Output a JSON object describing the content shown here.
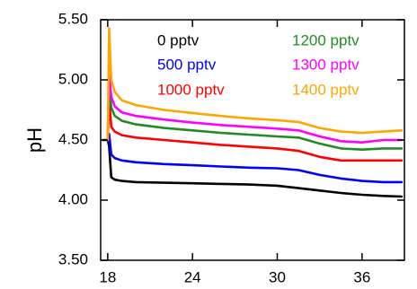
{
  "chart_data": {
    "type": "line",
    "title": "",
    "xlabel": "",
    "ylabel": "pH",
    "xlim": [
      17.5,
      39
    ],
    "ylim": [
      3.5,
      5.5
    ],
    "x_ticks": [
      18,
      24,
      30,
      36
    ],
    "y_ticks": [
      3.5,
      4.0,
      4.5,
      5.0,
      5.5
    ],
    "x_tick_labels": [
      "18",
      "24",
      "30",
      "36"
    ],
    "y_tick_labels": [
      "3.50",
      "4.00",
      "4.50",
      "5.00",
      "5.50"
    ],
    "grid": false,
    "legend_position": "top",
    "pre_x": [
      17.6,
      18.0
    ],
    "pre_value": 4.5,
    "x": [
      18.1,
      18.25,
      18.5,
      19,
      20,
      22,
      24,
      26,
      28,
      30,
      31.5,
      33,
      34.5,
      36,
      37.5,
      38.8
    ],
    "series": [
      {
        "name": "0 pptv",
        "color": "#000000",
        "values": [
          4.45,
          4.19,
          4.17,
          4.16,
          4.15,
          4.145,
          4.14,
          4.135,
          4.13,
          4.12,
          4.1,
          4.08,
          4.06,
          4.045,
          4.035,
          4.03
        ]
      },
      {
        "name": "500 pptv",
        "color": "#0000ff",
        "values": [
          4.55,
          4.38,
          4.35,
          4.33,
          4.315,
          4.3,
          4.29,
          4.28,
          4.27,
          4.265,
          4.25,
          4.21,
          4.18,
          4.16,
          4.15,
          4.15
        ]
      },
      {
        "name": "1000 pptv",
        "color": "#ff0000",
        "values": [
          4.85,
          4.61,
          4.57,
          4.54,
          4.52,
          4.5,
          4.48,
          4.46,
          4.445,
          4.43,
          4.41,
          4.36,
          4.33,
          4.33,
          4.33,
          4.33
        ]
      },
      {
        "name": "1200 pptv",
        "color": "#228b22",
        "values": [
          4.95,
          4.77,
          4.7,
          4.66,
          4.63,
          4.6,
          4.58,
          4.56,
          4.545,
          4.53,
          4.52,
          4.47,
          4.43,
          4.42,
          4.43,
          4.43
        ]
      },
      {
        "name": "1300 pptv",
        "color": "#ff00ff",
        "values": [
          5.05,
          4.86,
          4.78,
          4.73,
          4.7,
          4.67,
          4.645,
          4.625,
          4.61,
          4.595,
          4.58,
          4.53,
          4.49,
          4.48,
          4.5,
          4.5
        ]
      },
      {
        "name": "1400 pptv",
        "color": "#ffa500",
        "values": [
          5.43,
          5.0,
          4.9,
          4.83,
          4.79,
          4.75,
          4.725,
          4.7,
          4.68,
          4.665,
          4.65,
          4.6,
          4.57,
          4.56,
          4.57,
          4.58
        ]
      }
    ]
  }
}
